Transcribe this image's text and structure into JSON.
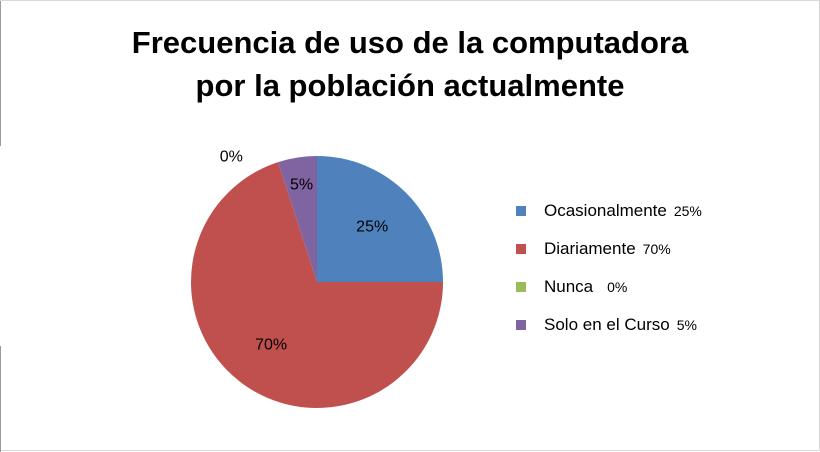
{
  "chart_data": {
    "type": "pie",
    "title": [
      "Frecuencia de uso de la computadora",
      "por la población actualmente"
    ],
    "slices": [
      {
        "name": "Ocasionalmente",
        "value": 25,
        "label": "25%",
        "color": "#4f81bd"
      },
      {
        "name": "Diariamente",
        "value": 70,
        "label": "70%",
        "color": "#c0504d"
      },
      {
        "name": "Nunca",
        "value": 0,
        "label": "0%",
        "color": "#9bbb59"
      },
      {
        "name": "Solo en el Curso",
        "value": 5,
        "label": "5%",
        "color": "#8064a2"
      }
    ],
    "legend": {
      "position": "right"
    }
  }
}
